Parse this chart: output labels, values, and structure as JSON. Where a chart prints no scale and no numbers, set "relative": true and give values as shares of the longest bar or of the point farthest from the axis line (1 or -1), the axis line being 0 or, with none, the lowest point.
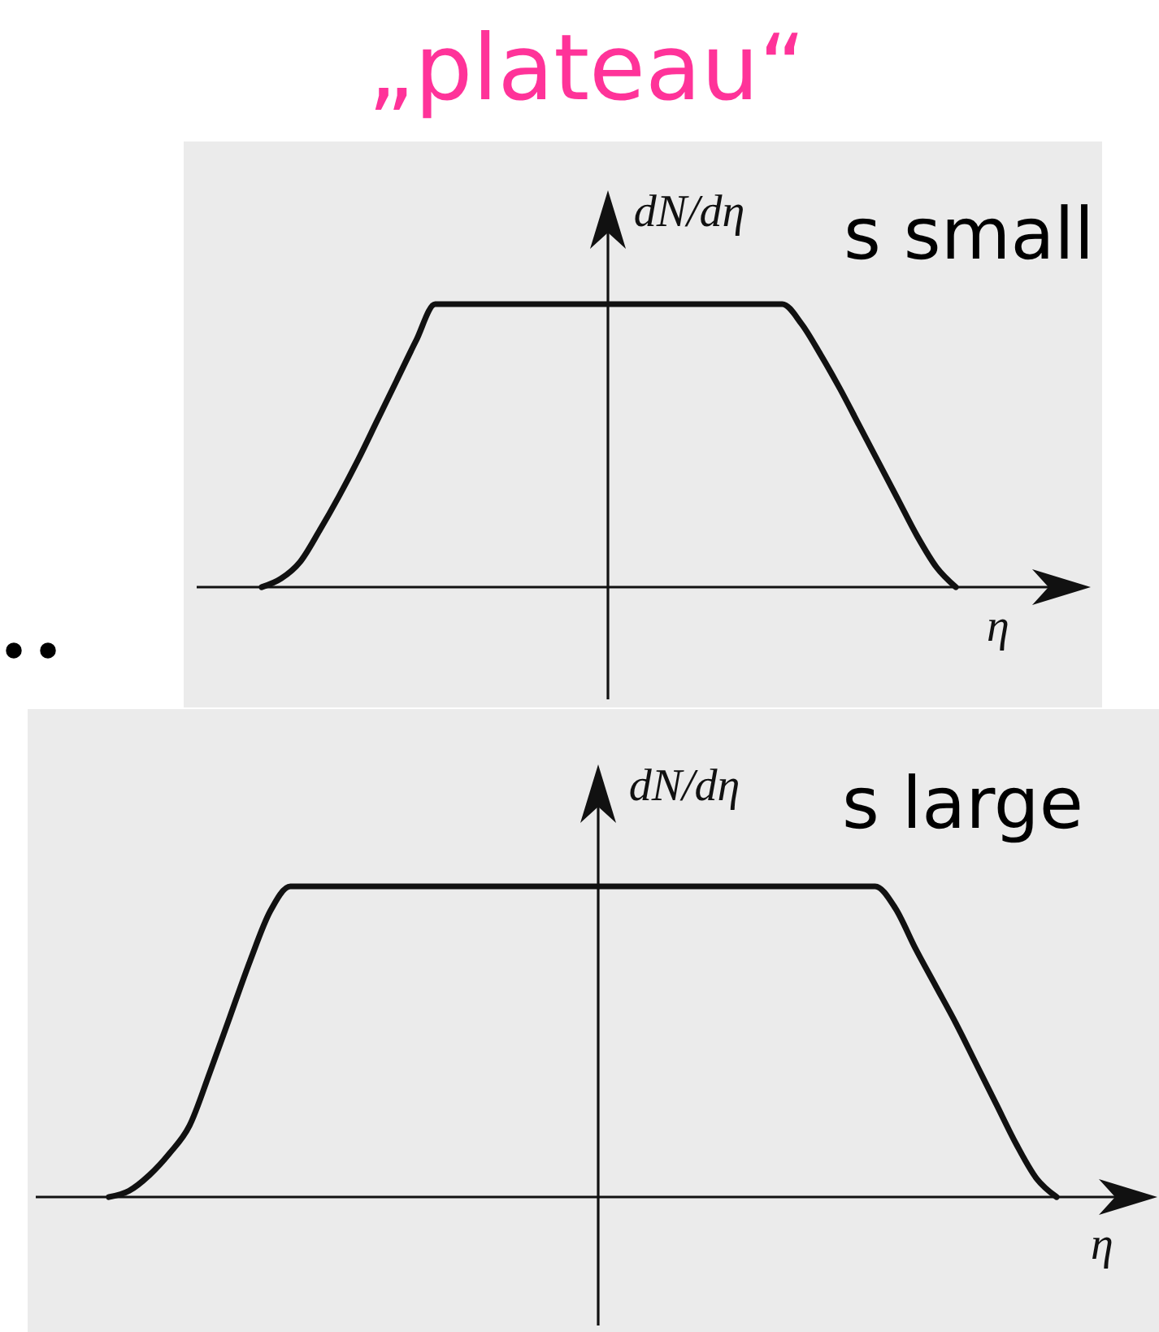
{
  "chart_data": [
    {
      "type": "line",
      "title": "„plateau“",
      "ylabel": "dN/dη",
      "xlabel": "η",
      "annotations": [
        "s small",
        ".."
      ],
      "relative": true,
      "categories": [
        null,
        null,
        null,
        null,
        null,
        null,
        null,
        null,
        null,
        null,
        null,
        null,
        null,
        null,
        null,
        null,
        null,
        null,
        null,
        null,
        null,
        null,
        null,
        null,
        null,
        null,
        null,
        null,
        null,
        null,
        null,
        null,
        null,
        null,
        null,
        null,
        null
      ],
      "series": [
        {
          "color": "#111111",
          "values": [
            0,
            0.03,
            0.09,
            0.2,
            0.32,
            0.45,
            0.59,
            0.73,
            0.87,
            1,
            1,
            1,
            1,
            1,
            1,
            1,
            1,
            1,
            1,
            1,
            1,
            1,
            1,
            1,
            1,
            1,
            1,
            1,
            0.93,
            0.82,
            0.7,
            0.57,
            0.44,
            0.31,
            0.18,
            0.07,
            0
          ]
        }
      ]
    },
    {
      "type": "line",
      "ylabel": "dN/dη",
      "xlabel": "η",
      "annotations": [
        "s large"
      ],
      "relative": true,
      "categories": [
        null,
        null,
        null,
        null,
        null,
        null,
        null,
        null,
        null,
        null,
        null,
        null,
        null,
        null,
        null,
        null,
        null,
        null,
        null,
        null,
        null,
        null,
        null,
        null,
        null,
        null,
        null,
        null,
        null,
        null,
        null,
        null,
        null,
        null,
        null,
        null,
        null,
        null,
        null,
        null,
        null,
        null,
        null,
        null,
        null,
        null,
        null,
        null
      ],
      "series": [
        {
          "color": "#111111",
          "values": [
            0,
            0.02,
            0.07,
            0.14,
            0.23,
            0.4,
            0.58,
            0.76,
            0.92,
            1,
            1,
            1,
            1,
            1,
            1,
            1,
            1,
            1,
            1,
            1,
            1,
            1,
            1,
            1,
            1,
            1,
            1,
            1,
            1,
            1,
            1,
            1,
            1,
            1,
            1,
            1,
            1,
            1,
            1,
            0.93,
            0.8,
            0.68,
            0.56,
            0.43,
            0.3,
            0.17,
            0.06,
            0
          ]
        }
      ]
    }
  ]
}
